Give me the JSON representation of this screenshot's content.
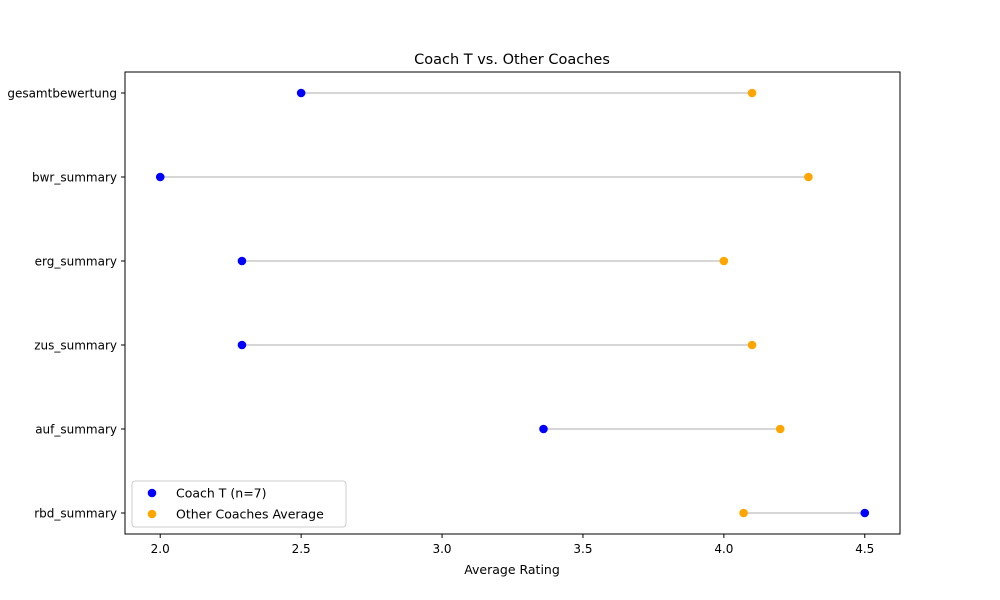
{
  "chart_data": {
    "type": "scatter",
    "title": "Coach T vs. Other Coaches",
    "xlabel": "Average Rating",
    "ylabel": "",
    "xlim": [
      1.875,
      4.625
    ],
    "xticks": [
      "2.0",
      "2.5",
      "3.0",
      "3.5",
      "4.0",
      "4.5"
    ],
    "xtick_values": [
      2.0,
      2.5,
      3.0,
      3.5,
      4.0,
      4.5
    ],
    "categories": [
      "gesamtbewertung",
      "bwr_summary",
      "erg_summary",
      "zus_summary",
      "auf_summary",
      "rbd_summary"
    ],
    "series": [
      {
        "name": "Coach T (n=7)",
        "color": "#0000ff",
        "values": [
          2.5,
          2.0,
          2.29,
          2.29,
          3.36,
          4.5
        ]
      },
      {
        "name": "Other Coaches Average",
        "color": "#ffa500",
        "values": [
          4.1,
          4.3,
          4.0,
          4.1,
          4.2,
          4.07
        ]
      }
    ],
    "connector_color": "#c8c8c8",
    "legend_position": "lower-left",
    "grid": false
  }
}
